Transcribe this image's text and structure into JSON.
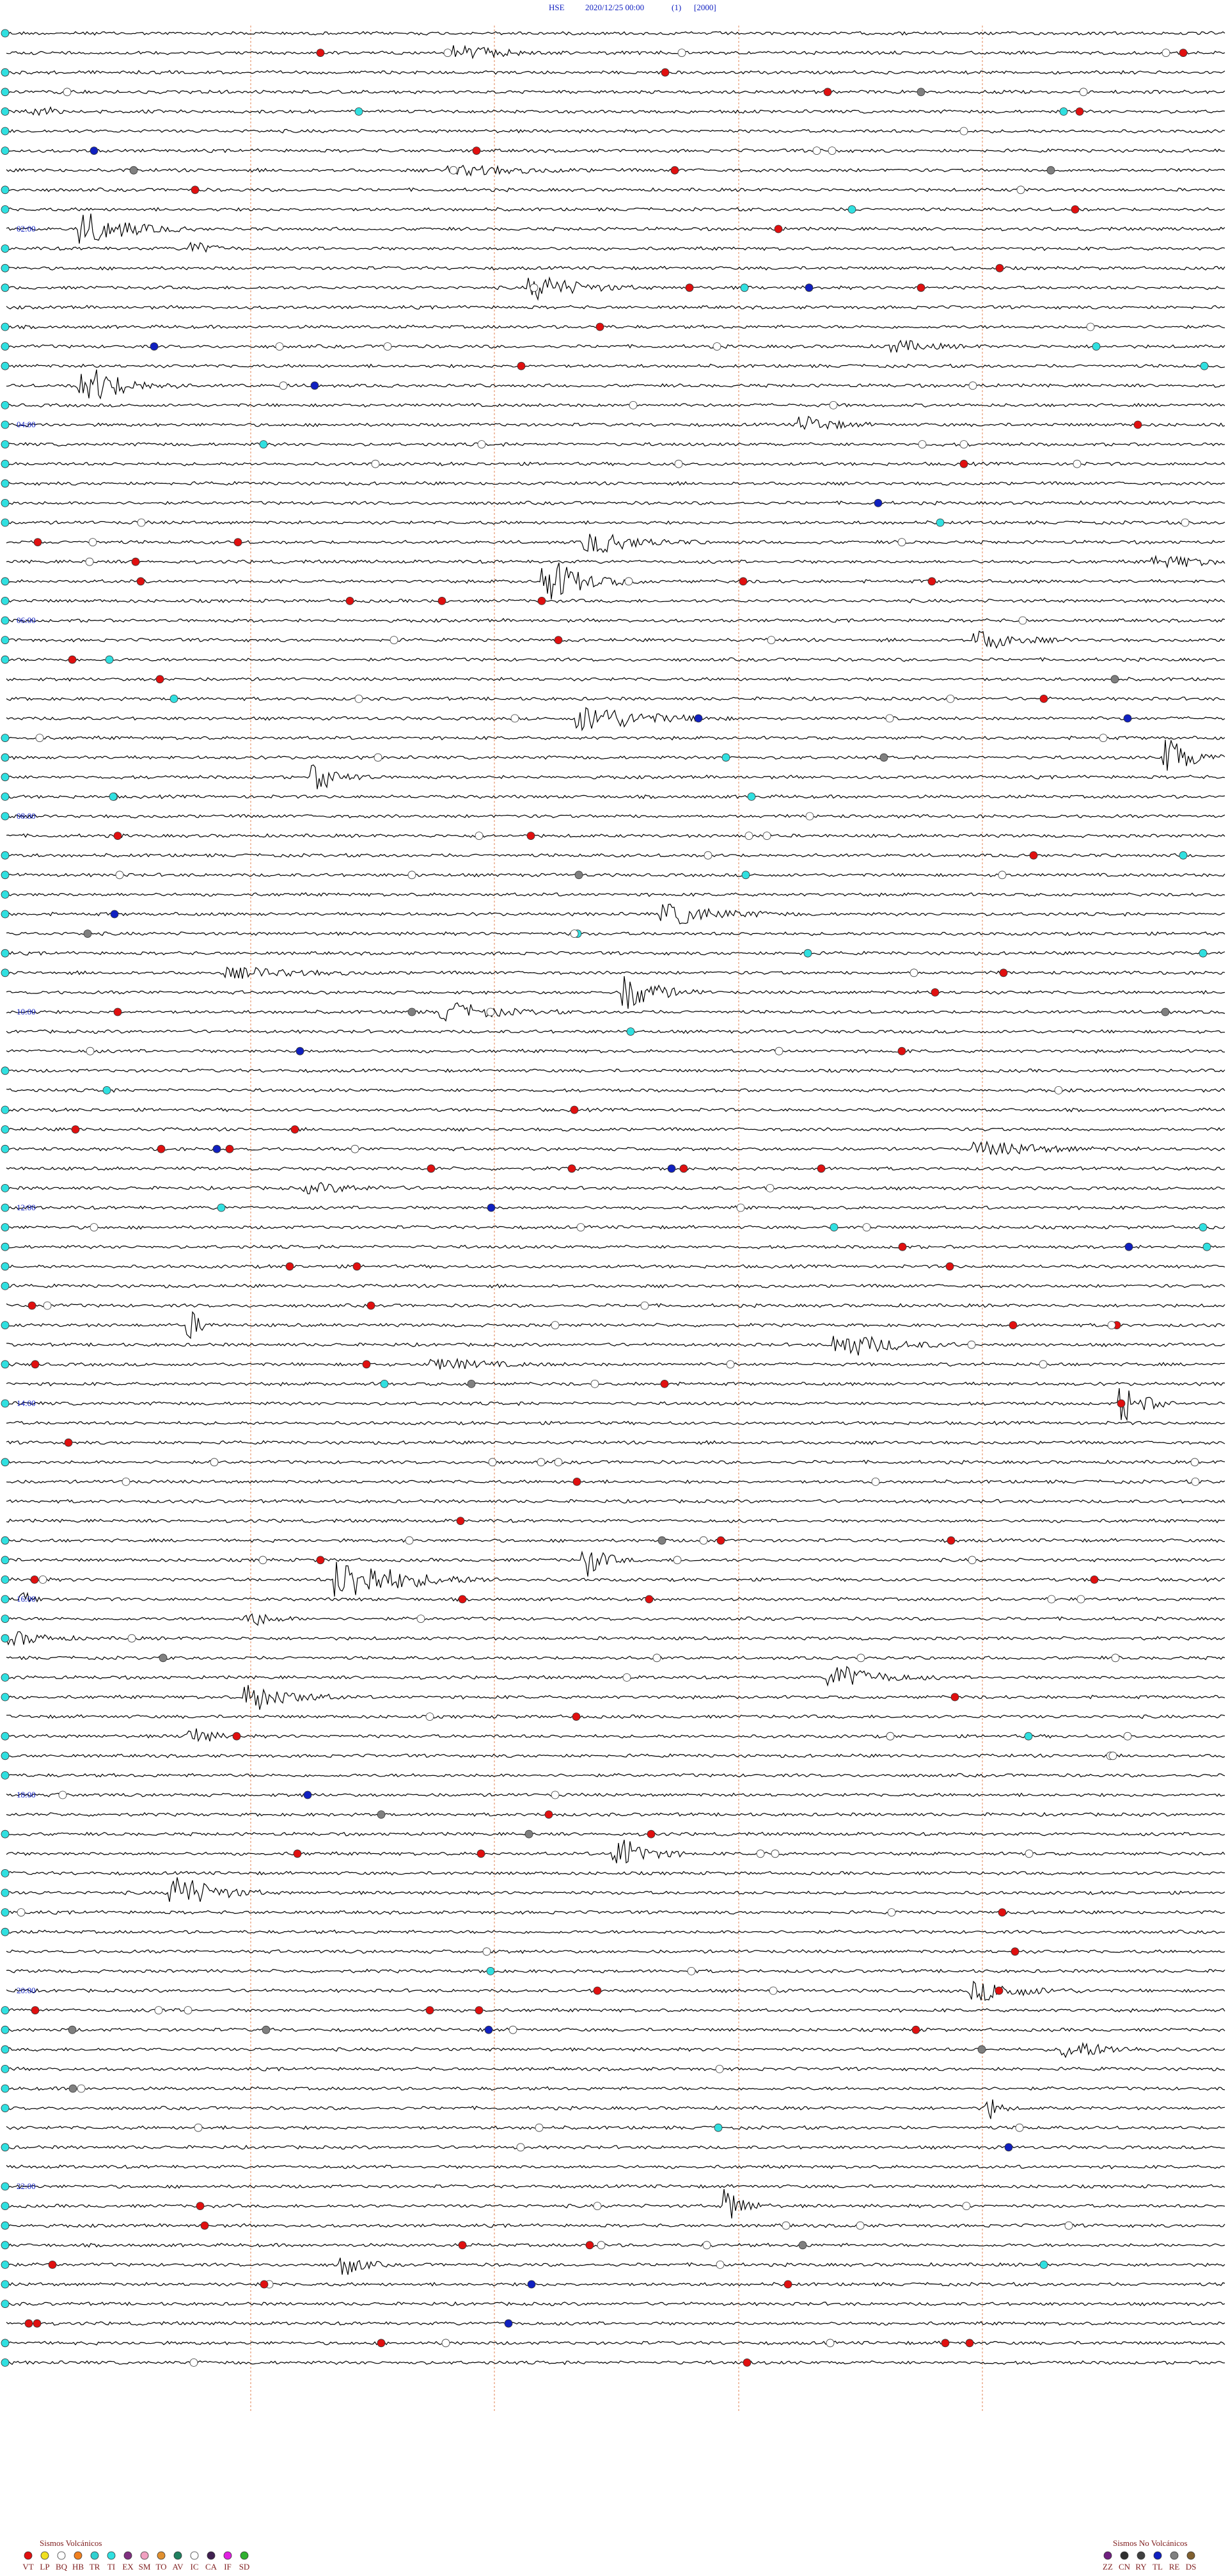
{
  "header": {
    "station": "HSE",
    "datetime": "2020/12/25 00:00",
    "channel": "(1)",
    "gain": "[2000]"
  },
  "time_labels": [
    "02:00",
    "04:00",
    "06:00",
    "08:00",
    "10:00",
    "12:00",
    "14:00",
    "16:00",
    "18:00",
    "20:00",
    "22:00"
  ],
  "legend_volcanic": {
    "title": "Sismos Volcánicos",
    "items": [
      {
        "code": "VT",
        "color": "#e01010"
      },
      {
        "code": "LP",
        "color": "#f0e020"
      },
      {
        "code": "BQ",
        "color": "#ffffff"
      },
      {
        "code": "HB",
        "color": "#f08020"
      },
      {
        "code": "TR",
        "color": "#30d0d0"
      },
      {
        "code": "TI",
        "color": "#30e0e0"
      },
      {
        "code": "EX",
        "color": "#803080"
      },
      {
        "code": "SM",
        "color": "#f0a0c0"
      },
      {
        "code": "TO",
        "color": "#e09030"
      },
      {
        "code": "AV",
        "color": "#208060"
      },
      {
        "code": "IC",
        "color": "#ffffff"
      },
      {
        "code": "CA",
        "color": "#402050"
      },
      {
        "code": "IF",
        "color": "#e020e0"
      },
      {
        "code": "SD",
        "color": "#30b030"
      }
    ]
  },
  "legend_nonvolcanic": {
    "title": "Sismos No Volcánicos",
    "items": [
      {
        "code": "ZZ",
        "color": "#702080"
      },
      {
        "code": "CN",
        "color": "#303030"
      },
      {
        "code": "RY",
        "color": "#404040"
      },
      {
        "code": "TL",
        "color": "#1020c0"
      },
      {
        "code": "RE",
        "color": "#808080"
      },
      {
        "code": "DS",
        "color": "#806030"
      }
    ]
  }
}
